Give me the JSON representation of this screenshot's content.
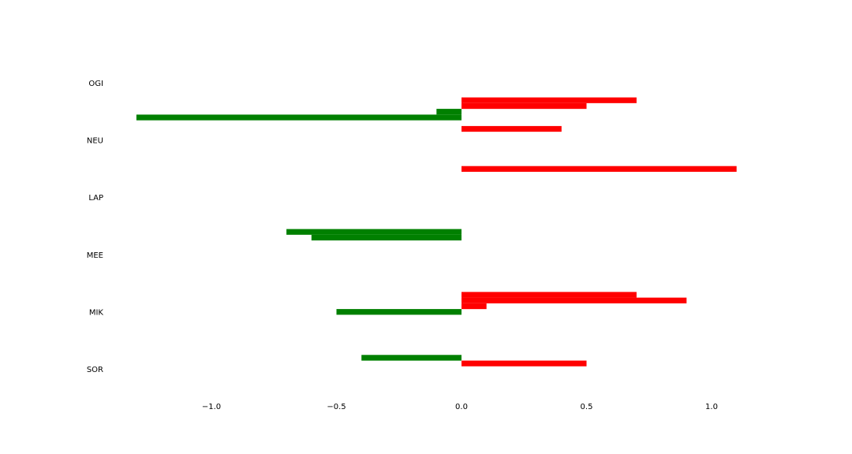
{
  "chart_data": {
    "type": "bar",
    "orientation": "horizontal",
    "title": "",
    "xlabel": "",
    "ylabel": "",
    "categories": [
      "SOR",
      "MIK",
      "MEE",
      "LAP",
      "NEU",
      "OGI"
    ],
    "xlim": [
      -1.3,
      1.3
    ],
    "xticks": [
      -1.0,
      -0.5,
      0.0,
      0.5,
      1.0
    ],
    "xtick_labels": [
      "−1.0",
      "−0.5",
      "0.0",
      "0.5",
      "1.0"
    ],
    "grid": false,
    "legend": "none",
    "colors": {
      "negative": "#008000",
      "positive": "#ff0000",
      "background": "#ffffff"
    },
    "bar_slots": 8,
    "bars": [
      {
        "category": "SOR",
        "slot": 1,
        "value": 0.5
      },
      {
        "category": "SOR",
        "slot": 2,
        "value": -0.4
      },
      {
        "category": "MIK",
        "slot": 0,
        "value": -0.5
      },
      {
        "category": "MIK",
        "slot": 1,
        "value": 0.1
      },
      {
        "category": "MIK",
        "slot": 2,
        "value": 0.9
      },
      {
        "category": "MIK",
        "slot": 3,
        "value": 0.7
      },
      {
        "category": "MEE",
        "slot": 3,
        "value": -0.6
      },
      {
        "category": "MEE",
        "slot": 4,
        "value": -0.7
      },
      {
        "category": "LAP",
        "slot": 5,
        "value": 1.1
      },
      {
        "category": "NEU",
        "slot": 2,
        "value": 0.4
      },
      {
        "category": "NEU",
        "slot": 4,
        "value": -1.3
      },
      {
        "category": "NEU",
        "slot": 5,
        "value": -0.1
      },
      {
        "category": "NEU",
        "slot": 6,
        "value": 0.5
      },
      {
        "category": "NEU",
        "slot": 7,
        "value": 0.7
      }
    ]
  }
}
